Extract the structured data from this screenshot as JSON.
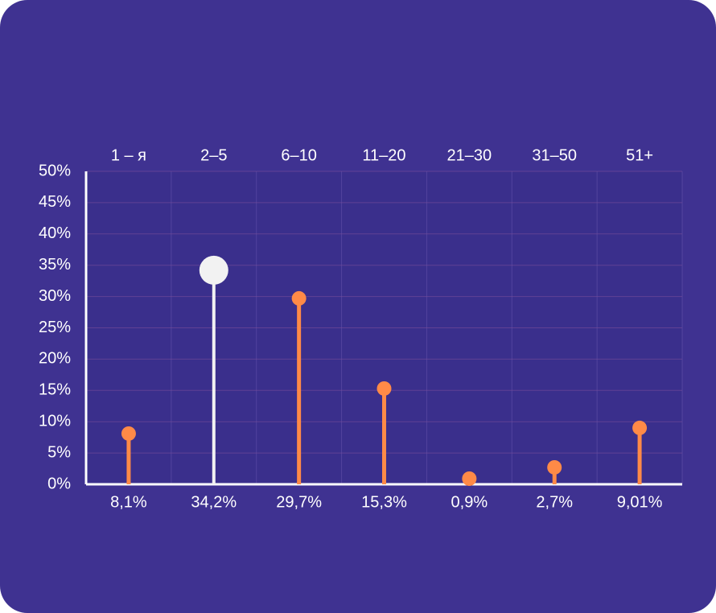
{
  "chart_data": {
    "type": "lollipop",
    "categories": [
      "1 – я",
      "2–5",
      "6–10",
      "11–20",
      "21–30",
      "31–50",
      "51+"
    ],
    "values": [
      8.1,
      34.2,
      29.7,
      15.3,
      0.9,
      2.7,
      9.01
    ],
    "value_labels": [
      "8,1%",
      "34,2%",
      "29,7%",
      "15,3%",
      "0,9%",
      "2,7%",
      "9,01%"
    ],
    "colors": [
      "#ff8a47",
      "#f2f2f2",
      "#ff8a47",
      "#ff8a47",
      "#ff8a47",
      "#ff8a47",
      "#ff8a47"
    ],
    "ylim": [
      0,
      50
    ],
    "yticks": [
      {
        "value": 0,
        "label": "0%"
      },
      {
        "value": 5,
        "label": "5%"
      },
      {
        "value": 10,
        "label": "10%"
      },
      {
        "value": 15,
        "label": "15%"
      },
      {
        "value": 20,
        "label": "20%"
      },
      {
        "value": 25,
        "label": "25%"
      },
      {
        "value": 30,
        "label": "30%"
      },
      {
        "value": 35,
        "label": "35%"
      },
      {
        "value": 40,
        "label": "40%"
      },
      {
        "value": 45,
        "label": "45%"
      },
      {
        "value": 50,
        "label": "50%"
      }
    ],
    "grid": true
  }
}
